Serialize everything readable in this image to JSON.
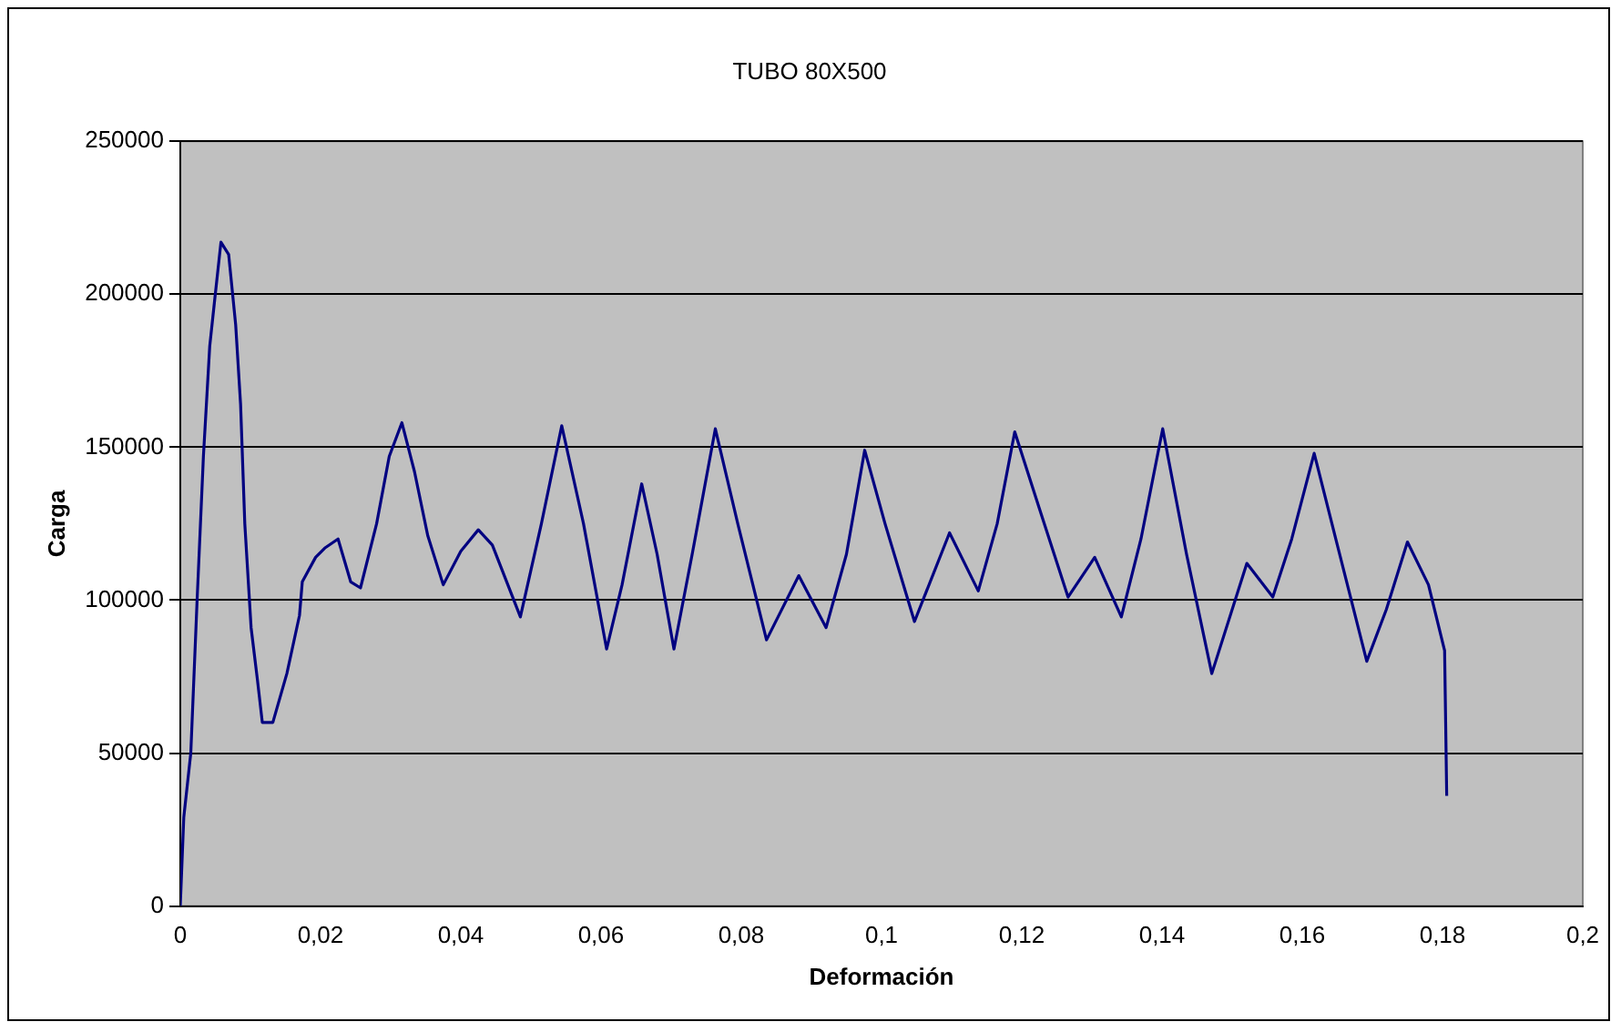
{
  "chart_data": {
    "type": "line",
    "title": "TUBO 80X500",
    "xlabel": "Deformación",
    "ylabel": "Carga",
    "xlim": [
      0,
      0.2
    ],
    "xticks": [
      0,
      {
        "value": 0.02,
        "label": "0,02"
      },
      {
        "value": 0.04,
        "label": "0,04"
      },
      {
        "value": 0.06,
        "label": "0,06"
      },
      {
        "value": 0.08,
        "label": "0,08"
      },
      {
        "value": 0.1,
        "label": "0,1"
      },
      {
        "value": 0.12,
        "label": "0,12"
      },
      {
        "value": 0.14,
        "label": "0,14"
      },
      {
        "value": 0.16,
        "label": "0,16"
      },
      {
        "value": 0.18,
        "label": "0,18"
      },
      {
        "value": 0.2,
        "label": "0,2"
      }
    ],
    "ylim": [
      0,
      250000
    ],
    "yticks": [
      0,
      50000,
      100000,
      150000,
      200000,
      250000
    ],
    "grid": "y",
    "legend": false,
    "marker": "none",
    "line_style": "solid",
    "x": [
      0,
      0.0005,
      0.0015,
      0.0024,
      0.0033,
      0.0042,
      0.0049,
      0.0058,
      0.0069,
      0.0079,
      0.0086,
      0.0092,
      0.0101,
      0.011,
      0.0117,
      0.0132,
      0.0152,
      0.017,
      0.0174,
      0.0193,
      0.0206,
      0.0225,
      0.0243,
      0.0257,
      0.028,
      0.0298,
      0.0316,
      0.0334,
      0.0353,
      0.0375,
      0.04,
      0.0425,
      0.0445,
      0.0485,
      0.0515,
      0.0544,
      0.0575,
      0.0608,
      0.063,
      0.0658,
      0.068,
      0.0704,
      0.073,
      0.0763,
      0.0795,
      0.0836,
      0.0882,
      0.0921,
      0.095,
      0.0976,
      0.1005,
      0.1047,
      0.1097,
      0.1138,
      0.1165,
      0.119,
      0.1225,
      0.1266,
      0.1304,
      0.1342,
      0.137,
      0.1401,
      0.1435,
      0.1471,
      0.1521,
      0.1558,
      0.1585,
      0.1617,
      0.165,
      0.1692,
      0.172,
      0.175,
      0.178,
      0.1803,
      0.1806
    ],
    "series": [
      {
        "color": "#000080",
        "values": [
          0,
          29000,
          50000,
          100000,
          147000,
          183000,
          198000,
          217000,
          213000,
          190000,
          164000,
          125000,
          91000,
          74000,
          60000,
          60000,
          76000,
          95000,
          106000,
          114000,
          117000,
          120000,
          106000,
          104000,
          125000,
          147000,
          158000,
          142000,
          121000,
          105000,
          116000,
          123000,
          118000,
          94500,
          125000,
          157000,
          125000,
          84000,
          105000,
          138000,
          115000,
          84000,
          115000,
          156000,
          125000,
          87000,
          108000,
          91000,
          115000,
          149000,
          125000,
          93000,
          122000,
          103000,
          125000,
          155000,
          130000,
          101000,
          114000,
          94500,
          120000,
          156000,
          115000,
          76000,
          112000,
          101000,
          120000,
          148000,
          118000,
          80000,
          97000,
          119000,
          105000,
          83500,
          36000
        ]
      }
    ]
  }
}
